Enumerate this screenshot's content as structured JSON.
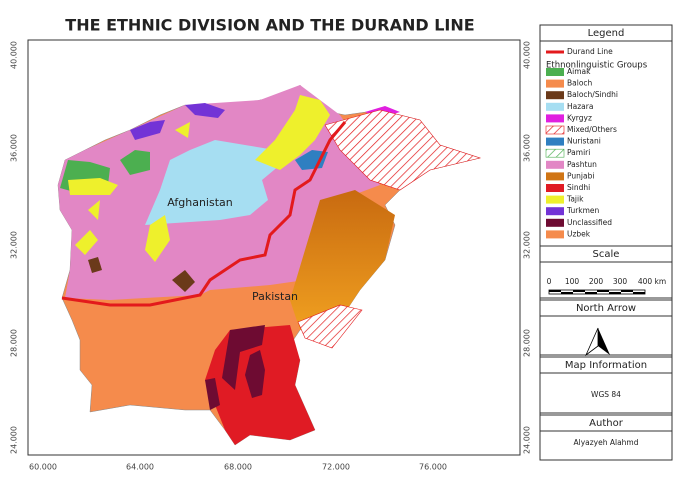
{
  "title": "THE ETHNIC DIVISION AND THE DURAND LINE",
  "map_labels": {
    "afghanistan": "Afghanistan",
    "pakistan": "Pakistan"
  },
  "lat_ticks": [
    "40.000",
    "36.000",
    "32.000",
    "28.000",
    "24.000"
  ],
  "lon_ticks": [
    "60.000",
    "64.000",
    "68.000",
    "72.000",
    "76.000"
  ],
  "legend": {
    "title": "Legend",
    "line_item": {
      "label": "Durand Line",
      "color": "#e31a1c"
    },
    "group_title": "Ethnonlinguistic Groups",
    "items": [
      {
        "label": "Aimak",
        "color": "#4caf50"
      },
      {
        "label": "Baloch",
        "color": "#f58b4c"
      },
      {
        "label": "Baloch/Sindhi",
        "color": "#6b3a1a"
      },
      {
        "label": "Hazara",
        "color": "#a6def2"
      },
      {
        "label": "Kyrgyz",
        "color": "#e020e0"
      },
      {
        "label": "Mixed/Others",
        "color": "#e31a1c",
        "hatched": true
      },
      {
        "label": "Nuristani",
        "color": "#2f7fc1"
      },
      {
        "label": "Pamiri",
        "color": "#4caf50",
        "hatched": true
      },
      {
        "label": "Pashtun",
        "color": "#e287c5"
      },
      {
        "label": "Punjabi",
        "color": "#d07515"
      },
      {
        "label": "Sindhi",
        "color": "#e01b24"
      },
      {
        "label": "Tajik",
        "color": "#eef02c"
      },
      {
        "label": "Turkmen",
        "color": "#7333d6"
      },
      {
        "label": "Unclassified",
        "color": "#6e0b32"
      },
      {
        "label": "Uzbek",
        "color": "#f58b4c"
      }
    ]
  },
  "scale": {
    "title": "Scale",
    "labels": [
      "0",
      "100",
      "200",
      "300",
      "400 km"
    ]
  },
  "north_arrow": {
    "title": "North Arrow"
  },
  "map_info": {
    "title": "Map Information",
    "crs": "WGS 84"
  },
  "author": {
    "title": "Author",
    "name": "Alyazyeh Alahmd"
  }
}
